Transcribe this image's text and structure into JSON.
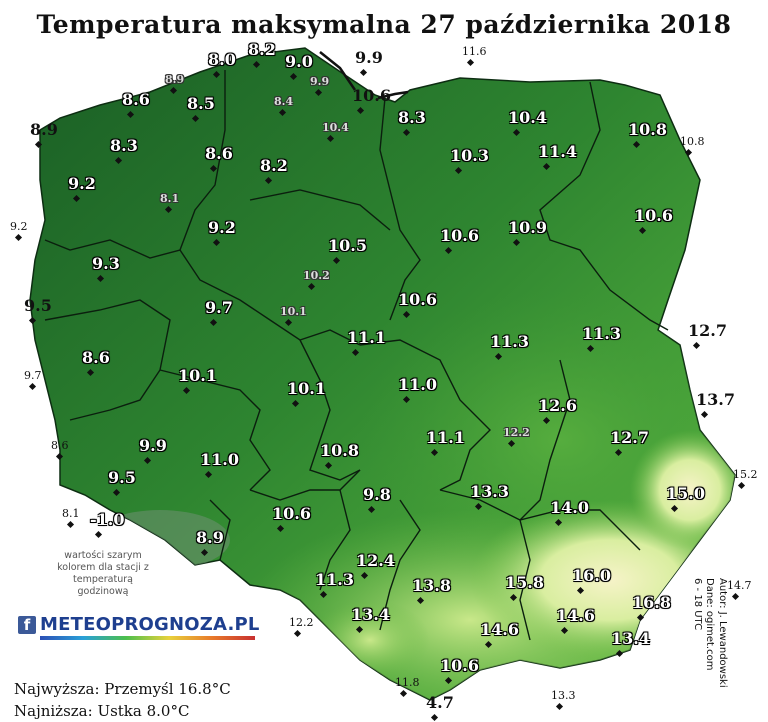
{
  "title": "Temperatura maksymalna 27 października 2018",
  "note": "wartości szarym kolorem dla stacji z temperaturą godzinową",
  "logo": {
    "icon": "facebook-icon",
    "text": "METEOPROGNOZA.PL"
  },
  "extremes": {
    "highest": "Najwyższa: Przemyśl 16.8°C",
    "lowest": "Najniższa: Ustka 8.0°C"
  },
  "credits": [
    "Autor: J. Lewandowski",
    "Dane: ogimet.com",
    "6 - 18 UTC"
  ],
  "colors": {
    "dark_green": "#1f6b2a",
    "mid_green": "#3f9a37",
    "light_green": "#8fd05a",
    "pale_yellow": "#f4f1c4",
    "sea": "#ffffff"
  },
  "stations": [
    {
      "v": "8.0",
      "kind": "main"
    },
    {
      "v": "8.2",
      "kind": "main"
    },
    {
      "v": "9.0",
      "kind": "main"
    },
    {
      "v": "9.9",
      "kind": "outside"
    },
    {
      "v": "11.6",
      "kind": "outside-small"
    },
    {
      "v": "8.9",
      "kind": "hourly"
    },
    {
      "v": "9.9",
      "kind": "hourly"
    },
    {
      "v": "8.6",
      "kind": "main"
    },
    {
      "v": "8.5",
      "kind": "main"
    },
    {
      "v": "8.4",
      "kind": "hourly"
    },
    {
      "v": "10.6",
      "kind": "outside"
    },
    {
      "v": "8.9",
      "kind": "outside"
    },
    {
      "v": "10.4",
      "kind": "hourly"
    },
    {
      "v": "8.3",
      "kind": "main"
    },
    {
      "v": "10.4",
      "kind": "main"
    },
    {
      "v": "10.8",
      "kind": "main"
    },
    {
      "v": "10.8",
      "kind": "outside-small"
    },
    {
      "v": "8.3",
      "kind": "main"
    },
    {
      "v": "8.6",
      "kind": "main"
    },
    {
      "v": "10.3",
      "kind": "main"
    },
    {
      "v": "11.4",
      "kind": "main"
    },
    {
      "v": "9.2",
      "kind": "main"
    },
    {
      "v": "8.2",
      "kind": "main"
    },
    {
      "v": "8.1",
      "kind": "hourly"
    },
    {
      "v": "9.2",
      "kind": "outside-small"
    },
    {
      "v": "9.2",
      "kind": "main"
    },
    {
      "v": "10.6",
      "kind": "main"
    },
    {
      "v": "10.9",
      "kind": "main"
    },
    {
      "v": "10.6",
      "kind": "main"
    },
    {
      "v": "9.3",
      "kind": "main"
    },
    {
      "v": "10.5",
      "kind": "main"
    },
    {
      "v": "10.2",
      "kind": "hourly"
    },
    {
      "v": "9.5",
      "kind": "outside"
    },
    {
      "v": "9.7",
      "kind": "main"
    },
    {
      "v": "10.6",
      "kind": "main"
    },
    {
      "v": "10.1",
      "kind": "hourly"
    },
    {
      "v": "11.3",
      "kind": "main"
    },
    {
      "v": "11.3",
      "kind": "main"
    },
    {
      "v": "12.7",
      "kind": "outside"
    },
    {
      "v": "11.1",
      "kind": "main"
    },
    {
      "v": "8.6",
      "kind": "main"
    },
    {
      "v": "9.7",
      "kind": "outside-small"
    },
    {
      "v": "10.1",
      "kind": "main"
    },
    {
      "v": "10.1",
      "kind": "main"
    },
    {
      "v": "11.0",
      "kind": "main"
    },
    {
      "v": "13.7",
      "kind": "outside"
    },
    {
      "v": "12.6",
      "kind": "main"
    },
    {
      "v": "8.6",
      "kind": "outside-small"
    },
    {
      "v": "9.9",
      "kind": "main"
    },
    {
      "v": "11.0",
      "kind": "main"
    },
    {
      "v": "10.8",
      "kind": "main"
    },
    {
      "v": "11.1",
      "kind": "main"
    },
    {
      "v": "12.2",
      "kind": "hourly"
    },
    {
      "v": "12.7",
      "kind": "main"
    },
    {
      "v": "9.5",
      "kind": "main"
    },
    {
      "v": "13.3",
      "kind": "main"
    },
    {
      "v": "15.2",
      "kind": "outside-small"
    },
    {
      "v": "15.0",
      "kind": "main"
    },
    {
      "v": "8.1",
      "kind": "outside-small"
    },
    {
      "v": "-1.0",
      "kind": "main"
    },
    {
      "v": "9.8",
      "kind": "main"
    },
    {
      "v": "14.0",
      "kind": "main"
    },
    {
      "v": "10.6",
      "kind": "main"
    },
    {
      "v": "8.9",
      "kind": "main"
    },
    {
      "v": "12.4",
      "kind": "main"
    },
    {
      "v": "11.3",
      "kind": "main"
    },
    {
      "v": "16.0",
      "kind": "main"
    },
    {
      "v": "15.8",
      "kind": "main"
    },
    {
      "v": "13.8",
      "kind": "main"
    },
    {
      "v": "14.7",
      "kind": "outside-small"
    },
    {
      "v": "16.8",
      "kind": "main"
    },
    {
      "v": "13.4",
      "kind": "main"
    },
    {
      "v": "14.6",
      "kind": "main"
    },
    {
      "v": "12.2",
      "kind": "outside-small"
    },
    {
      "v": "14.6",
      "kind": "main"
    },
    {
      "v": "13.4",
      "kind": "main"
    },
    {
      "v": "10.6",
      "kind": "main"
    },
    {
      "v": "11.8",
      "kind": "outside-small"
    },
    {
      "v": "4.7",
      "kind": "outside"
    },
    {
      "v": "13.3",
      "kind": "outside-small"
    }
  ]
}
